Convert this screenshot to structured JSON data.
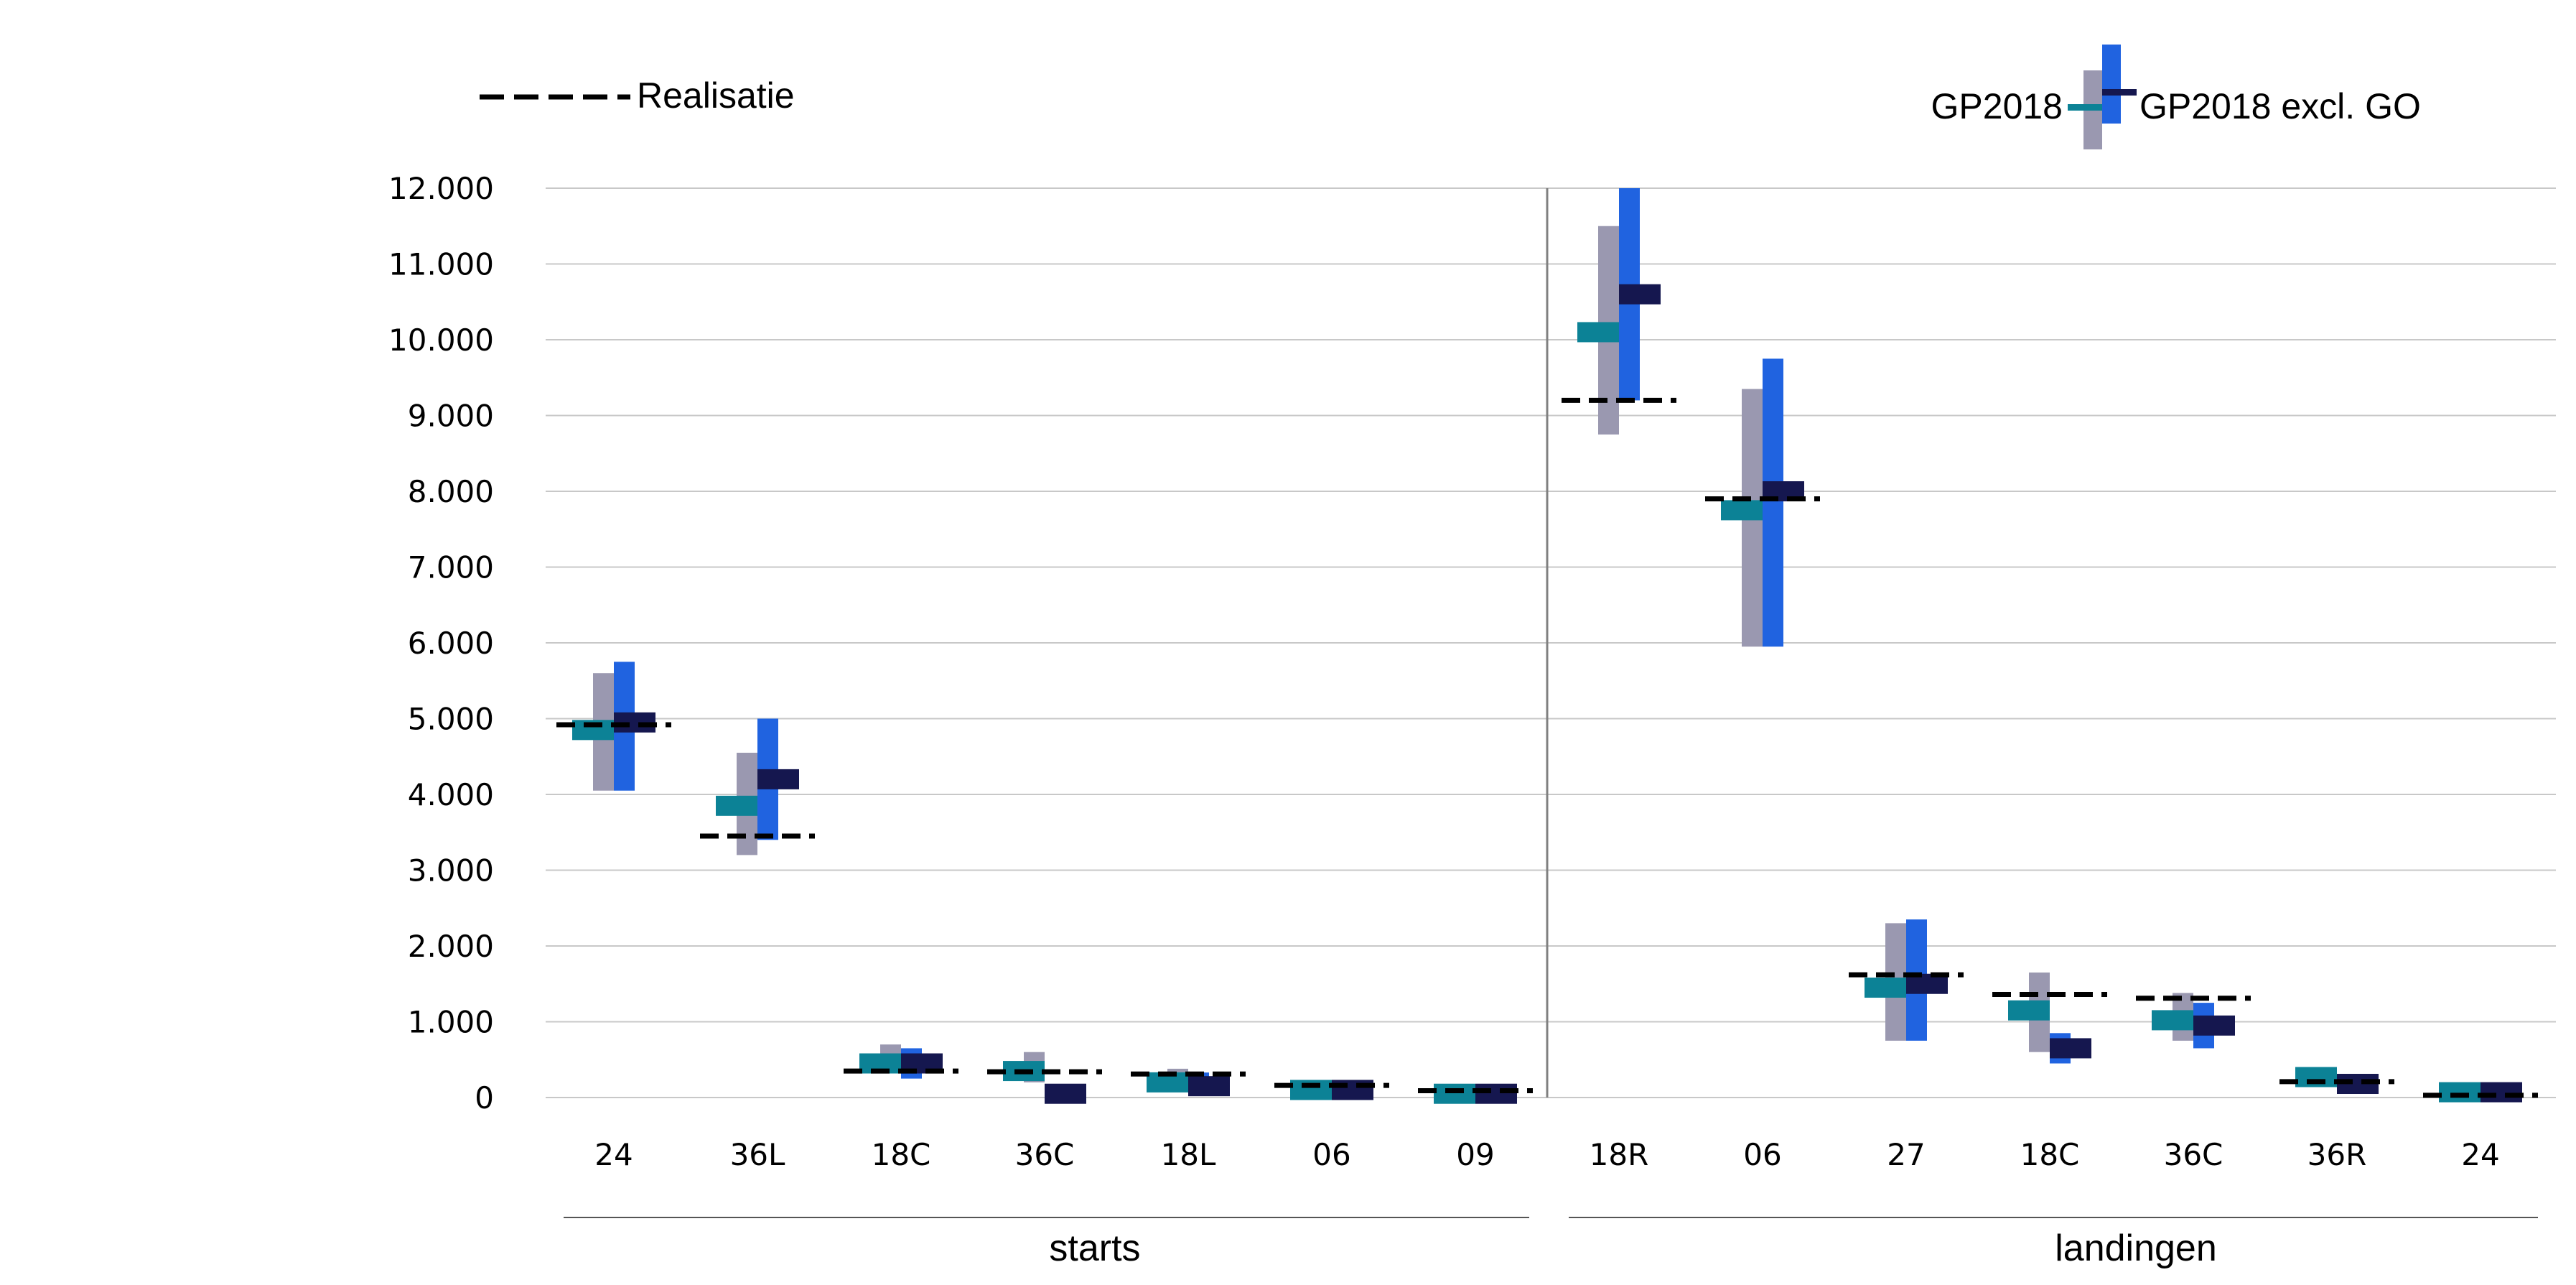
{
  "chart_data": {
    "type": "bar",
    "description_groups": [
      {
        "label": "starts",
        "categories": [
          "24",
          "36L",
          "18C",
          "36C",
          "18L",
          "06",
          "09"
        ]
      },
      {
        "label": "landingen",
        "categories": [
          "18R",
          "06",
          "27",
          "18C",
          "36C",
          "36R",
          "24"
        ]
      }
    ],
    "categories": [
      "24",
      "36L",
      "18C",
      "36C",
      "18L",
      "06",
      "09",
      "18R",
      "06",
      "27",
      "18C",
      "36C",
      "36R",
      "24"
    ],
    "ylim": [
      0,
      12000
    ],
    "yticks": [
      0,
      1000,
      2000,
      3000,
      4000,
      5000,
      6000,
      7000,
      8000,
      9000,
      10000,
      11000,
      12000
    ],
    "ytick_labels": [
      "0",
      "1.000",
      "2.000",
      "3.000",
      "4.000",
      "5.000",
      "6.000",
      "7.000",
      "8.000",
      "9.000",
      "10.000",
      "11.000",
      "12.000"
    ],
    "gridlines": true,
    "series": [
      {
        "name": "GP2018",
        "range_color": "#9a98b0",
        "mean_color": "#0c8296",
        "low": [
          4050,
          3200,
          550,
          200,
          200,
          50,
          0,
          8750,
          5950,
          750,
          600,
          750,
          150,
          0
        ],
        "high": [
          5600,
          4550,
          700,
          600,
          380,
          180,
          150,
          11500,
          9350,
          2300,
          1650,
          1380,
          380,
          130
        ],
        "mean": [
          4850,
          3850,
          450,
          350,
          200,
          100,
          50,
          10100,
          7750,
          1450,
          1150,
          1020,
          270,
          70
        ]
      },
      {
        "name": "GP2018 excl. GO",
        "range_color": "#2063e0",
        "mean_color": "#15174f",
        "low": [
          4050,
          3400,
          250,
          0,
          50,
          0,
          0,
          9200,
          5950,
          750,
          450,
          650,
          80,
          0
        ],
        "high": [
          5750,
          5000,
          650,
          150,
          330,
          170,
          130,
          12000,
          9750,
          2350,
          850,
          1250,
          280,
          120
        ],
        "mean": [
          4950,
          4200,
          450,
          50,
          150,
          100,
          50,
          10600,
          8000,
          1500,
          650,
          950,
          180,
          70
        ]
      },
      {
        "name": "Realisatie",
        "color": "#000000",
        "style": "dashed",
        "values": [
          4920,
          3450,
          350,
          340,
          310,
          160,
          90,
          9200,
          7900,
          1620,
          1360,
          1310,
          210,
          30
        ]
      }
    ],
    "legend": {
      "realisatie_label": "Realisatie",
      "gp2018_label": "GP2018",
      "gp2018_excl_label": "GP2018 excl. GO",
      "placement": "top"
    },
    "group_labels": [
      "starts",
      "landingen"
    ]
  }
}
